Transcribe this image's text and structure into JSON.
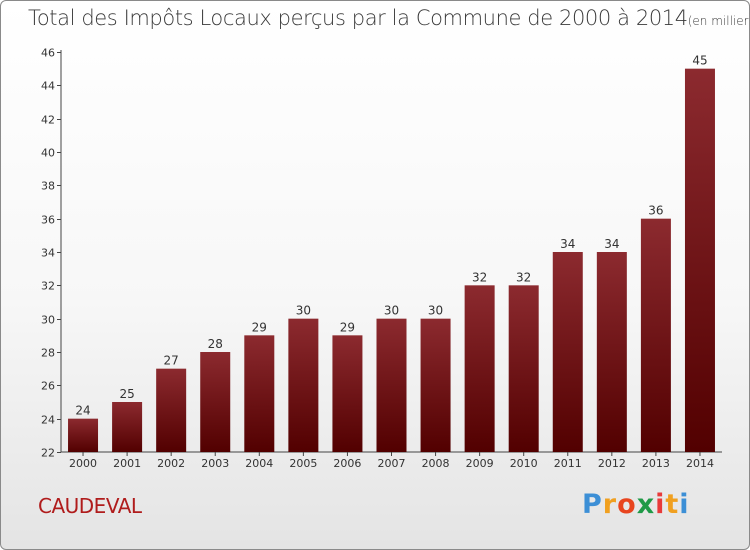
{
  "title": "Total des Impôts Locaux perçus par la Commune de 2000 à 2014",
  "title_unit": "(en milliers d'€)",
  "commune": "CAUDEVAL",
  "logo": {
    "letters": [
      "P",
      "r",
      "o",
      "x",
      "i",
      "t",
      "i"
    ],
    "colors": [
      "#3c8fd6",
      "#f0a020",
      "#e8451f",
      "#1f9a47",
      "#e83a3a",
      "#f0a020",
      "#3c8fd6"
    ]
  },
  "colors": {
    "bar_top": "#8c2a2f",
    "bar_bottom": "#520000",
    "commune": "#b01c1c"
  },
  "chart_data": {
    "type": "bar",
    "categories": [
      "2000",
      "2001",
      "2002",
      "2003",
      "2004",
      "2005",
      "2006",
      "2007",
      "2008",
      "2009",
      "2010",
      "2011",
      "2012",
      "2013",
      "2014"
    ],
    "values": [
      24,
      25,
      27,
      28,
      29,
      30,
      29,
      30,
      30,
      32,
      32,
      34,
      34,
      36,
      45
    ],
    "labels": [
      "24",
      "25",
      "27",
      "28",
      "29",
      "30",
      "29",
      "30",
      "30",
      "32",
      "32",
      "34",
      "34",
      "36",
      "45"
    ],
    "ylim": [
      22,
      46
    ],
    "yticks": [
      22,
      24,
      26,
      28,
      30,
      32,
      34,
      36,
      38,
      40,
      42,
      44,
      46
    ],
    "grid": false,
    "legend": "none"
  }
}
